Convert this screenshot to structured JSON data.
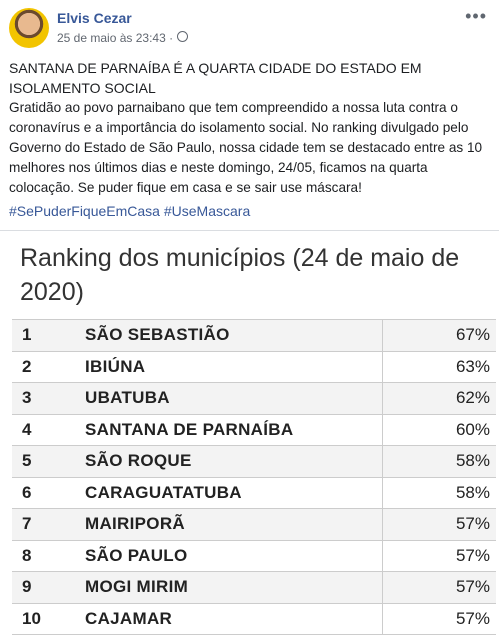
{
  "post": {
    "author": "Elvis Cezar",
    "timestamp": "25 de maio às 23:43 ·",
    "headline": "SANTANA DE PARNAÍBA É A QUARTA CIDADE DO ESTADO EM ISOLAMENTO SOCIAL",
    "body": "Gratidão ao povo parnaibano que tem compreendido a nossa luta contra o coronavírus e a importância do isolamento social. No ranking divulgado pelo Governo do Estado de São Paulo, nossa cidade tem se destacado entre as 10 melhores nos últimos dias e neste domingo, 24/05, ficamos na quarta colocação. Se puder fique em casa e se sair use máscara!",
    "hashtags": "#SePuderFiqueEmCasa #UseMascara"
  },
  "image": {
    "title": "Ranking dos municípios (24 de maio de 2020)",
    "table": {
      "rows": [
        [
          "1",
          "SÃO SEBASTIÃO",
          "67%"
        ],
        [
          "2",
          "IBIÚNA",
          "63%"
        ],
        [
          "3",
          "UBATUBA",
          "62%"
        ],
        [
          "4",
          "SANTANA DE PARNAÍBA",
          "60%"
        ],
        [
          "5",
          "SÃO ROQUE",
          "58%"
        ],
        [
          "6",
          "CARAGUATATUBA",
          "58%"
        ],
        [
          "7",
          "MAIRIPORÃ",
          "57%"
        ],
        [
          "8",
          "SÃO PAULO",
          "57%"
        ],
        [
          "9",
          "MOGI MIRIM",
          "57%"
        ],
        [
          "10",
          "CAJAMAR",
          "57%"
        ]
      ]
    }
  }
}
